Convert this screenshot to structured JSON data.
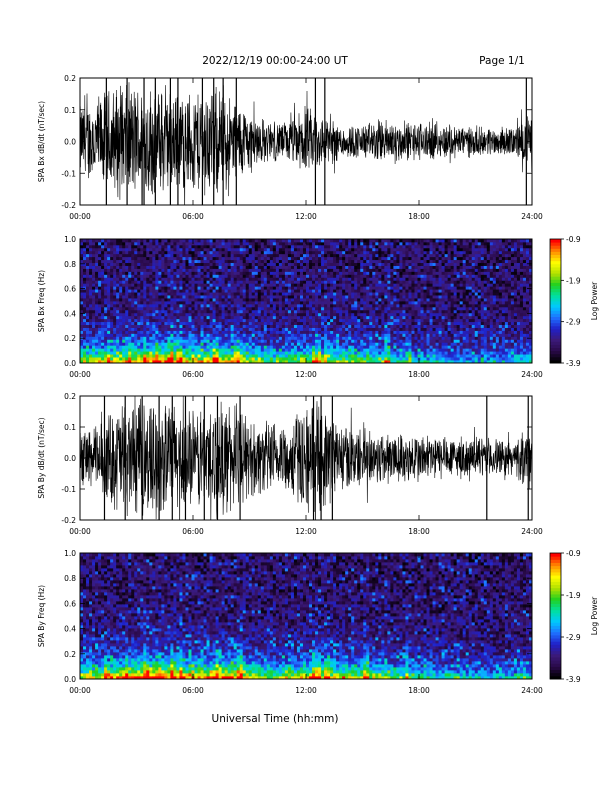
{
  "header": {
    "title": "2022/12/19  00:00-24:00 UT",
    "page": "Page 1/1"
  },
  "footer": {
    "xlabel": "Universal Time (hh:mm)"
  },
  "colors": {
    "trace": "#000000",
    "colormap": [
      "#000000",
      "#2a0a4a",
      "#3b1a7a",
      "#2020c8",
      "#1f6fff",
      "#00c8ff",
      "#00e0a0",
      "#20d020",
      "#b0e000",
      "#ffff00",
      "#ff9000",
      "#ff0000"
    ]
  },
  "chart_data": [
    {
      "type": "line",
      "ylabel": "SPA Bx dB/dt (nT/sec)",
      "xlim": [
        0,
        24
      ],
      "ylim": [
        -0.2,
        0.2
      ],
      "xticks": [
        "00:00",
        "06:00",
        "12:00",
        "18:00",
        "24:00"
      ],
      "yticks": [
        "-0.2",
        "-0.1",
        "0.0",
        "0.1",
        "0.2"
      ],
      "envelope_hours": [
        0,
        1,
        2,
        3,
        4,
        5,
        6,
        7,
        8,
        9,
        10,
        11,
        12,
        13,
        14,
        15,
        16,
        17,
        18,
        19,
        20,
        21,
        22,
        23,
        24
      ],
      "envelope": [
        0.13,
        0.16,
        0.2,
        0.2,
        0.2,
        0.17,
        0.18,
        0.2,
        0.16,
        0.11,
        0.07,
        0.07,
        0.12,
        0.09,
        0.06,
        0.06,
        0.08,
        0.07,
        0.07,
        0.06,
        0.06,
        0.05,
        0.05,
        0.05,
        0.1
      ],
      "spikes_hours": [
        1.4,
        2.5,
        3.4,
        4.0,
        4.8,
        5.2,
        6.5,
        7.1,
        7.6,
        8.3,
        12.5,
        13.0,
        23.7
      ]
    },
    {
      "type": "heatmap",
      "ylabel": "SPA Bx Freq (Hz)",
      "colorbar_label": "Log Power",
      "xlim": [
        0,
        24
      ],
      "ylim": [
        0,
        1.0
      ],
      "xticks": [
        "00:00",
        "06:00",
        "12:00",
        "18:00",
        "24:00"
      ],
      "yticks": [
        "0.0",
        "0.2",
        "0.4",
        "0.6",
        "0.8",
        "1.0"
      ],
      "colorbar_range": [
        -3.9,
        -0.9
      ],
      "colorbar_ticks": [
        "-0.9",
        "-1.9",
        "-2.9",
        "-3.9"
      ],
      "activity_hours": [
        0,
        2,
        4,
        6,
        8,
        10,
        12,
        14,
        16,
        18,
        20,
        22,
        24
      ],
      "activity": [
        0.55,
        0.65,
        0.75,
        0.65,
        0.7,
        0.45,
        0.55,
        0.55,
        0.45,
        0.35,
        0.3,
        0.3,
        0.35
      ],
      "streaks_hours": [
        1.5,
        2.6,
        3.4,
        4.1,
        4.8,
        5.3,
        7.2,
        8.4,
        12.5,
        12.7,
        13.0,
        16.3,
        17.5
      ]
    },
    {
      "type": "line",
      "ylabel": "SPA By dB/dt (nT/sec)",
      "xlim": [
        0,
        24
      ],
      "ylim": [
        -0.2,
        0.2
      ],
      "xticks": [
        "00:00",
        "06:00",
        "12:00",
        "18:00",
        "24:00"
      ],
      "yticks": [
        "-0.2",
        "-0.1",
        "0.0",
        "0.1",
        "0.2"
      ],
      "envelope_hours": [
        0,
        1,
        2,
        3,
        4,
        5,
        6,
        7,
        8,
        9,
        10,
        11,
        12,
        13,
        14,
        15,
        16,
        17,
        18,
        19,
        20,
        21,
        22,
        23,
        24
      ],
      "envelope": [
        0.1,
        0.12,
        0.2,
        0.2,
        0.2,
        0.2,
        0.17,
        0.2,
        0.2,
        0.14,
        0.13,
        0.13,
        0.2,
        0.18,
        0.12,
        0.1,
        0.1,
        0.09,
        0.09,
        0.08,
        0.07,
        0.07,
        0.07,
        0.06,
        0.12
      ],
      "spikes_hours": [
        1.3,
        2.4,
        3.3,
        4.2,
        4.9,
        5.6,
        6.6,
        7.3,
        8.5,
        12.4,
        12.8,
        13.4,
        21.6,
        23.8
      ]
    },
    {
      "type": "heatmap",
      "ylabel": "SPA By Freq (Hz)",
      "colorbar_label": "Log Power",
      "xlim": [
        0,
        24
      ],
      "ylim": [
        0,
        1.0
      ],
      "xticks": [
        "00:00",
        "06:00",
        "12:00",
        "18:00",
        "24:00"
      ],
      "yticks": [
        "0.0",
        "0.2",
        "0.4",
        "0.6",
        "0.8",
        "1.0"
      ],
      "colorbar_range": [
        -3.9,
        -0.9
      ],
      "colorbar_ticks": [
        "-0.9",
        "-1.9",
        "-2.9",
        "-3.9"
      ],
      "activity_hours": [
        0,
        2,
        4,
        6,
        8,
        10,
        12,
        14,
        16,
        18,
        20,
        22,
        24
      ],
      "activity": [
        0.55,
        0.7,
        0.8,
        0.7,
        0.75,
        0.5,
        0.65,
        0.6,
        0.5,
        0.4,
        0.35,
        0.32,
        0.35
      ],
      "streaks_hours": [
        1.4,
        2.5,
        3.5,
        4.2,
        4.9,
        5.4,
        7.3,
        8.5,
        12.5,
        12.7,
        13.1,
        15.2,
        17.4
      ]
    }
  ]
}
